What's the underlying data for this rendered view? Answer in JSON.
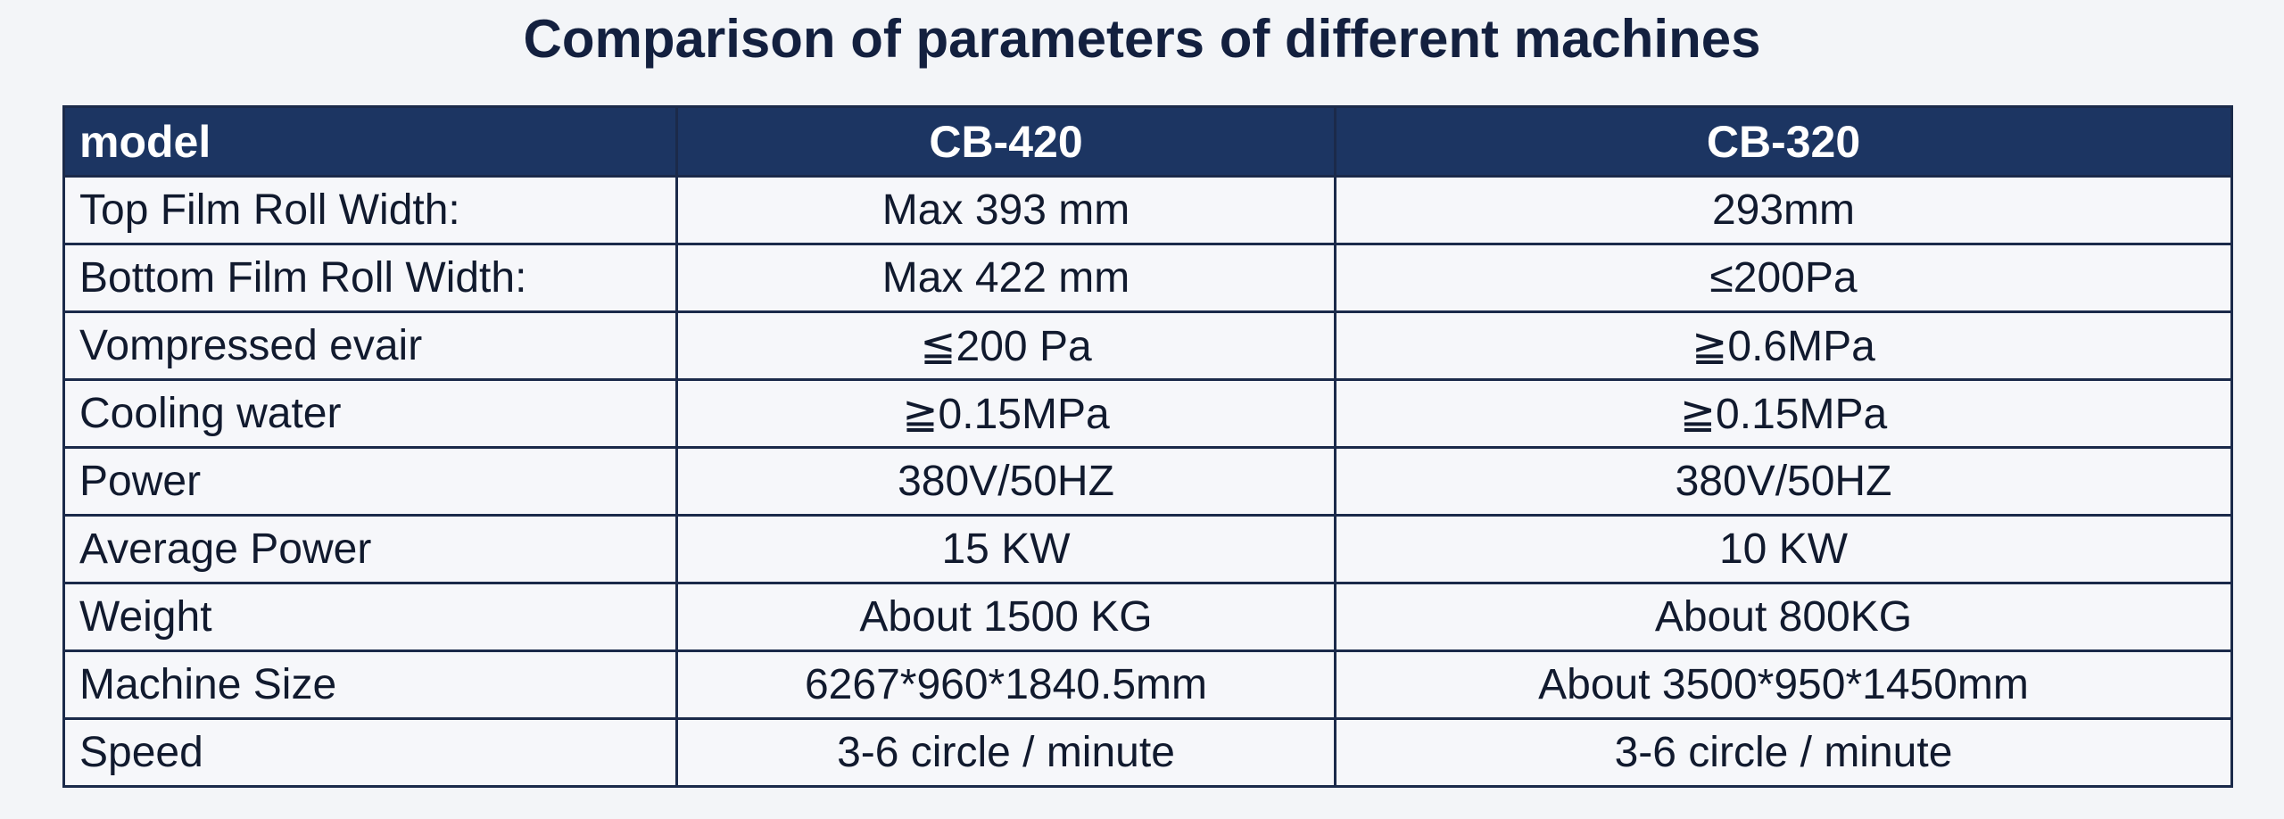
{
  "header": {
    "title": "Comparison of parameters of different machines"
  },
  "table": {
    "columns": [
      "model",
      "CB-420",
      "CB-320"
    ],
    "rows": [
      [
        "Top Film Roll Width:",
        "Max 393 mm",
        "293mm"
      ],
      [
        "Bottom Film Roll Width:",
        "Max 422 mm",
        "≤200Pa"
      ],
      [
        "Vompressed evair",
        "≦200 Pa",
        "≧0.6MPa"
      ],
      [
        "Cooling water",
        "≧0.15MPa",
        "≧0.15MPa"
      ],
      [
        "Power",
        "380V/50HZ",
        "380V/50HZ"
      ],
      [
        "Average Power",
        "15 KW",
        "10 KW"
      ],
      [
        "Weight",
        "About 1500 KG",
        "About 800KG"
      ],
      [
        "Machine Size",
        "6267*960*1840.5mm",
        "About 3500*950*1450mm"
      ],
      [
        "Speed",
        "3-6 circle / minute",
        "3-6 circle / minute"
      ]
    ]
  }
}
